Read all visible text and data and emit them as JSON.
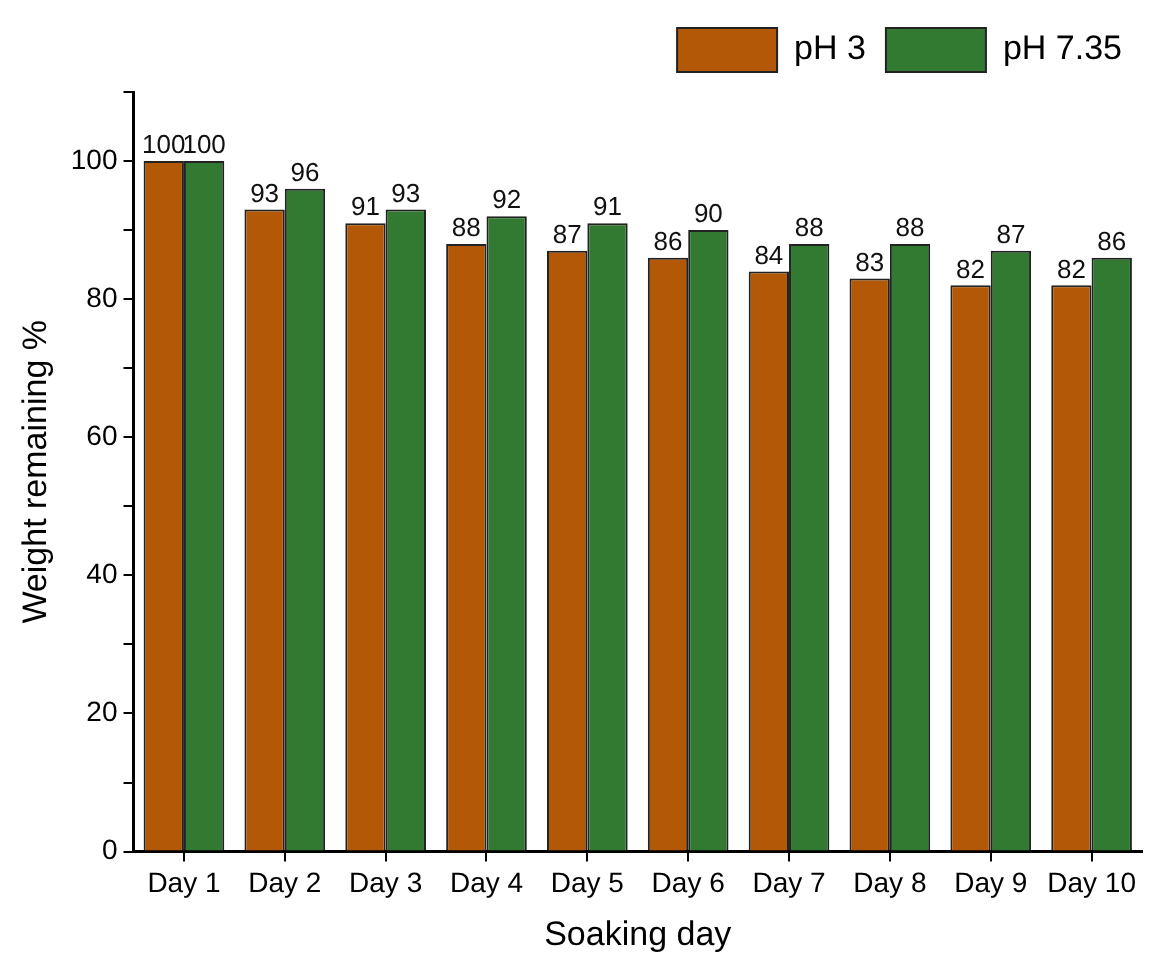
{
  "chart_data": {
    "type": "bar",
    "xlabel": "Soaking day",
    "ylabel": "Weight remaining %",
    "categories": [
      "Day 1",
      "Day 2",
      "Day 3",
      "Day 4",
      "Day 5",
      "Day 6",
      "Day 7",
      "Day 8",
      "Day 9",
      "Day 10"
    ],
    "series": [
      {
        "name": "pH 3",
        "color": "#b35806",
        "values": [
          100,
          93,
          91,
          88,
          87,
          86,
          84,
          83,
          82,
          82
        ]
      },
      {
        "name": "pH 7.35",
        "color": "#327a32",
        "values": [
          100,
          96,
          93,
          92,
          91,
          90,
          88,
          88,
          87,
          86
        ]
      }
    ],
    "ylim": [
      0,
      110
    ],
    "yticks": [
      0,
      {
        "value": 10,
        "label": null
      },
      20,
      {
        "value": 30,
        "label": null
      },
      40,
      {
        "value": 50,
        "label": null
      },
      60,
      {
        "value": 70,
        "label": null
      },
      80,
      {
        "value": 90,
        "label": null
      },
      100,
      {
        "value": 110,
        "label": null
      }
    ],
    "grid": false,
    "legend": "top right",
    "data_labels": true
  }
}
